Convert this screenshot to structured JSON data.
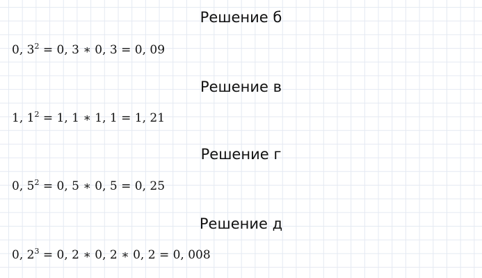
{
  "solutions": [
    {
      "title": "Решение б",
      "base": "0, 3",
      "exp": "2",
      "rest": " = 0, 3 ∗ 0, 3 = 0, 09"
    },
    {
      "title": "Решение в",
      "base": "1, 1",
      "exp": "2",
      "rest": " = 1, 1 ∗ 1, 1 = 1, 21"
    },
    {
      "title": "Решение г",
      "base": "0, 5",
      "exp": "2",
      "rest": " = 0, 5 ∗ 0, 5 = 0, 25"
    },
    {
      "title": "Решение д",
      "base": "0, 2",
      "exp": "3",
      "rest": " = 0, 2 ∗ 0, 2 ∗ 0, 2 = 0, 008"
    }
  ]
}
